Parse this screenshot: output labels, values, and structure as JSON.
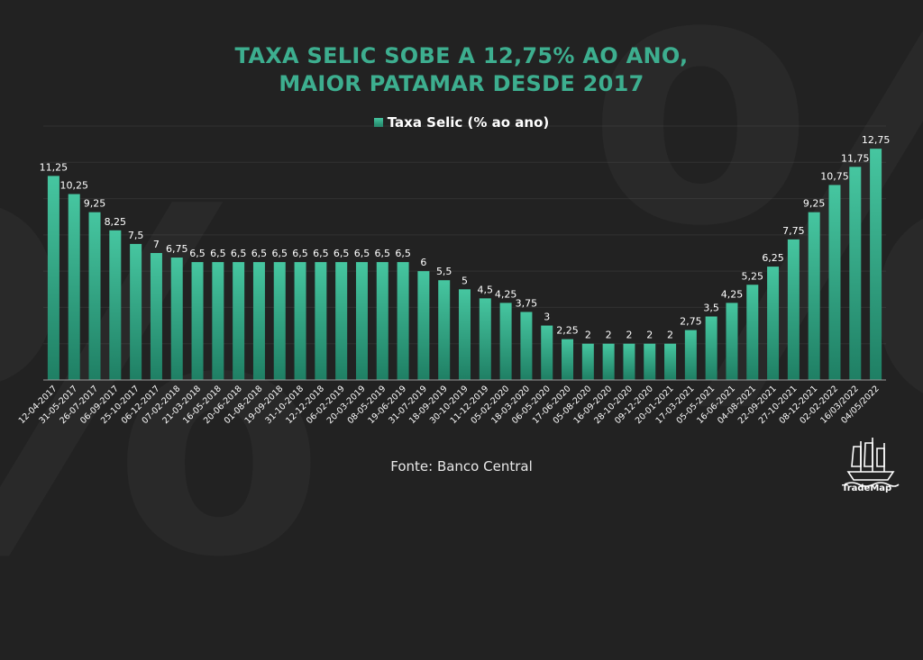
{
  "title_line1": "TAXA SELIC SOBE A 12,75% AO ANO,",
  "title_line2": "MAIOR PATAMAR DESDE 2017",
  "source": "Fonte: Banco Central",
  "logo_text": "TradeMap",
  "colors": {
    "background": "#222222",
    "title": "#3dae8f",
    "bar_top": "#46c6a0",
    "bar_bottom": "#1f7f64"
  },
  "chart_data": {
    "type": "bar",
    "legend": "top-center",
    "grid": true,
    "ylim": [
      0,
      14
    ],
    "series": [
      {
        "name": "Taxa Selic (% ao ano)"
      }
    ],
    "categories": [
      "12-04-2017",
      "31-05-2017",
      "26-07-2017",
      "06-09-2017",
      "25-10-2017",
      "06-12-2017",
      "07-02-2018",
      "21-03-2018",
      "16-05-2018",
      "20-06-2018",
      "01-08-2018",
      "19-09-2018",
      "31-10-2018",
      "12-12-2018",
      "06-02-2019",
      "20-03-2019",
      "08-05-2019",
      "19-06-2019",
      "31-07-2019",
      "18-09-2019",
      "30-10-2019",
      "11-12-2019",
      "05-02-2020",
      "18-03-2020",
      "06-05-2020",
      "17-06-2020",
      "05-08-2020",
      "16-09-2020",
      "28-10-2020",
      "09-12-2020",
      "20-01-2021",
      "17-03-2021",
      "05-05-2021",
      "16-06-2021",
      "04-08-2021",
      "22-09-2021",
      "27-10-2021",
      "08-12-2021",
      "02-02-2022",
      "16/03/2022",
      "04/05/2022"
    ],
    "values": [
      11.25,
      10.25,
      9.25,
      8.25,
      7.5,
      7,
      6.75,
      6.5,
      6.5,
      6.5,
      6.5,
      6.5,
      6.5,
      6.5,
      6.5,
      6.5,
      6.5,
      6.5,
      6,
      5.5,
      5,
      4.5,
      4.25,
      3.75,
      3,
      2.25,
      2,
      2,
      2,
      2,
      2,
      2.75,
      3.5,
      4.25,
      5.25,
      6.25,
      7.75,
      9.25,
      10.75,
      11.75,
      12.75
    ],
    "value_labels": [
      "11,25",
      "10,25",
      "9,25",
      "8,25",
      "7,5",
      "7",
      "6,75",
      "6,5",
      "6,5",
      "6,5",
      "6,5",
      "6,5",
      "6,5",
      "6,5",
      "6,5",
      "6,5",
      "6,5",
      "6,5",
      "6",
      "5,5",
      "5",
      "4,5",
      "4,25",
      "3,75",
      "3",
      "2,25",
      "2",
      "2",
      "2",
      "2",
      "2",
      "2,75",
      "3,5",
      "4,25",
      "5,25",
      "6,25",
      "7,75",
      "9,25",
      "10,75",
      "11,75",
      "12,75"
    ]
  }
}
